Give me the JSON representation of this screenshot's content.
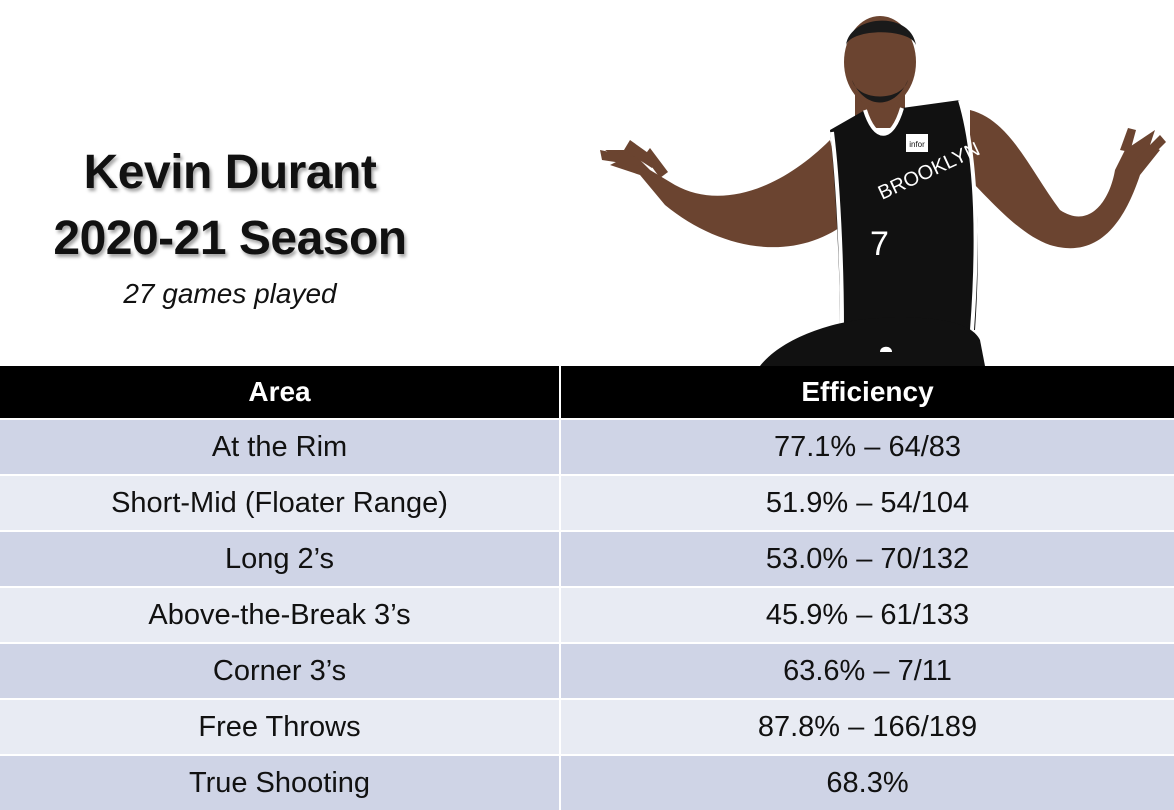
{
  "title": {
    "line1": "Kevin Durant",
    "line2": "2020-21 Season",
    "subtitle": "27 games played"
  },
  "photo": {
    "jersey_text": "BROOKLYN",
    "jersey_number": "7",
    "patch_text": "infor",
    "jersey_color": "#111111",
    "skin_color": "#6b4430"
  },
  "table": {
    "headers": [
      "Area",
      "Efficiency"
    ],
    "rows": [
      {
        "area": "At the Rim",
        "efficiency": "77.1% – 64/83"
      },
      {
        "area": "Short-Mid (Floater Range)",
        "efficiency": "51.9% – 54/104"
      },
      {
        "area": "Long 2’s",
        "efficiency": "53.0% – 70/132"
      },
      {
        "area": "Above-the-Break 3’s",
        "efficiency": "45.9% – 61/133"
      },
      {
        "area": "Corner 3’s",
        "efficiency": "63.6% – 7/11"
      },
      {
        "area": "Free Throws",
        "efficiency": "87.8% – 166/189"
      },
      {
        "area": "True Shooting",
        "efficiency": "68.3%"
      }
    ],
    "header_bg": "#000000",
    "row_bg_dark": "#cfd4e6",
    "row_bg_light": "#e8ebf3"
  }
}
